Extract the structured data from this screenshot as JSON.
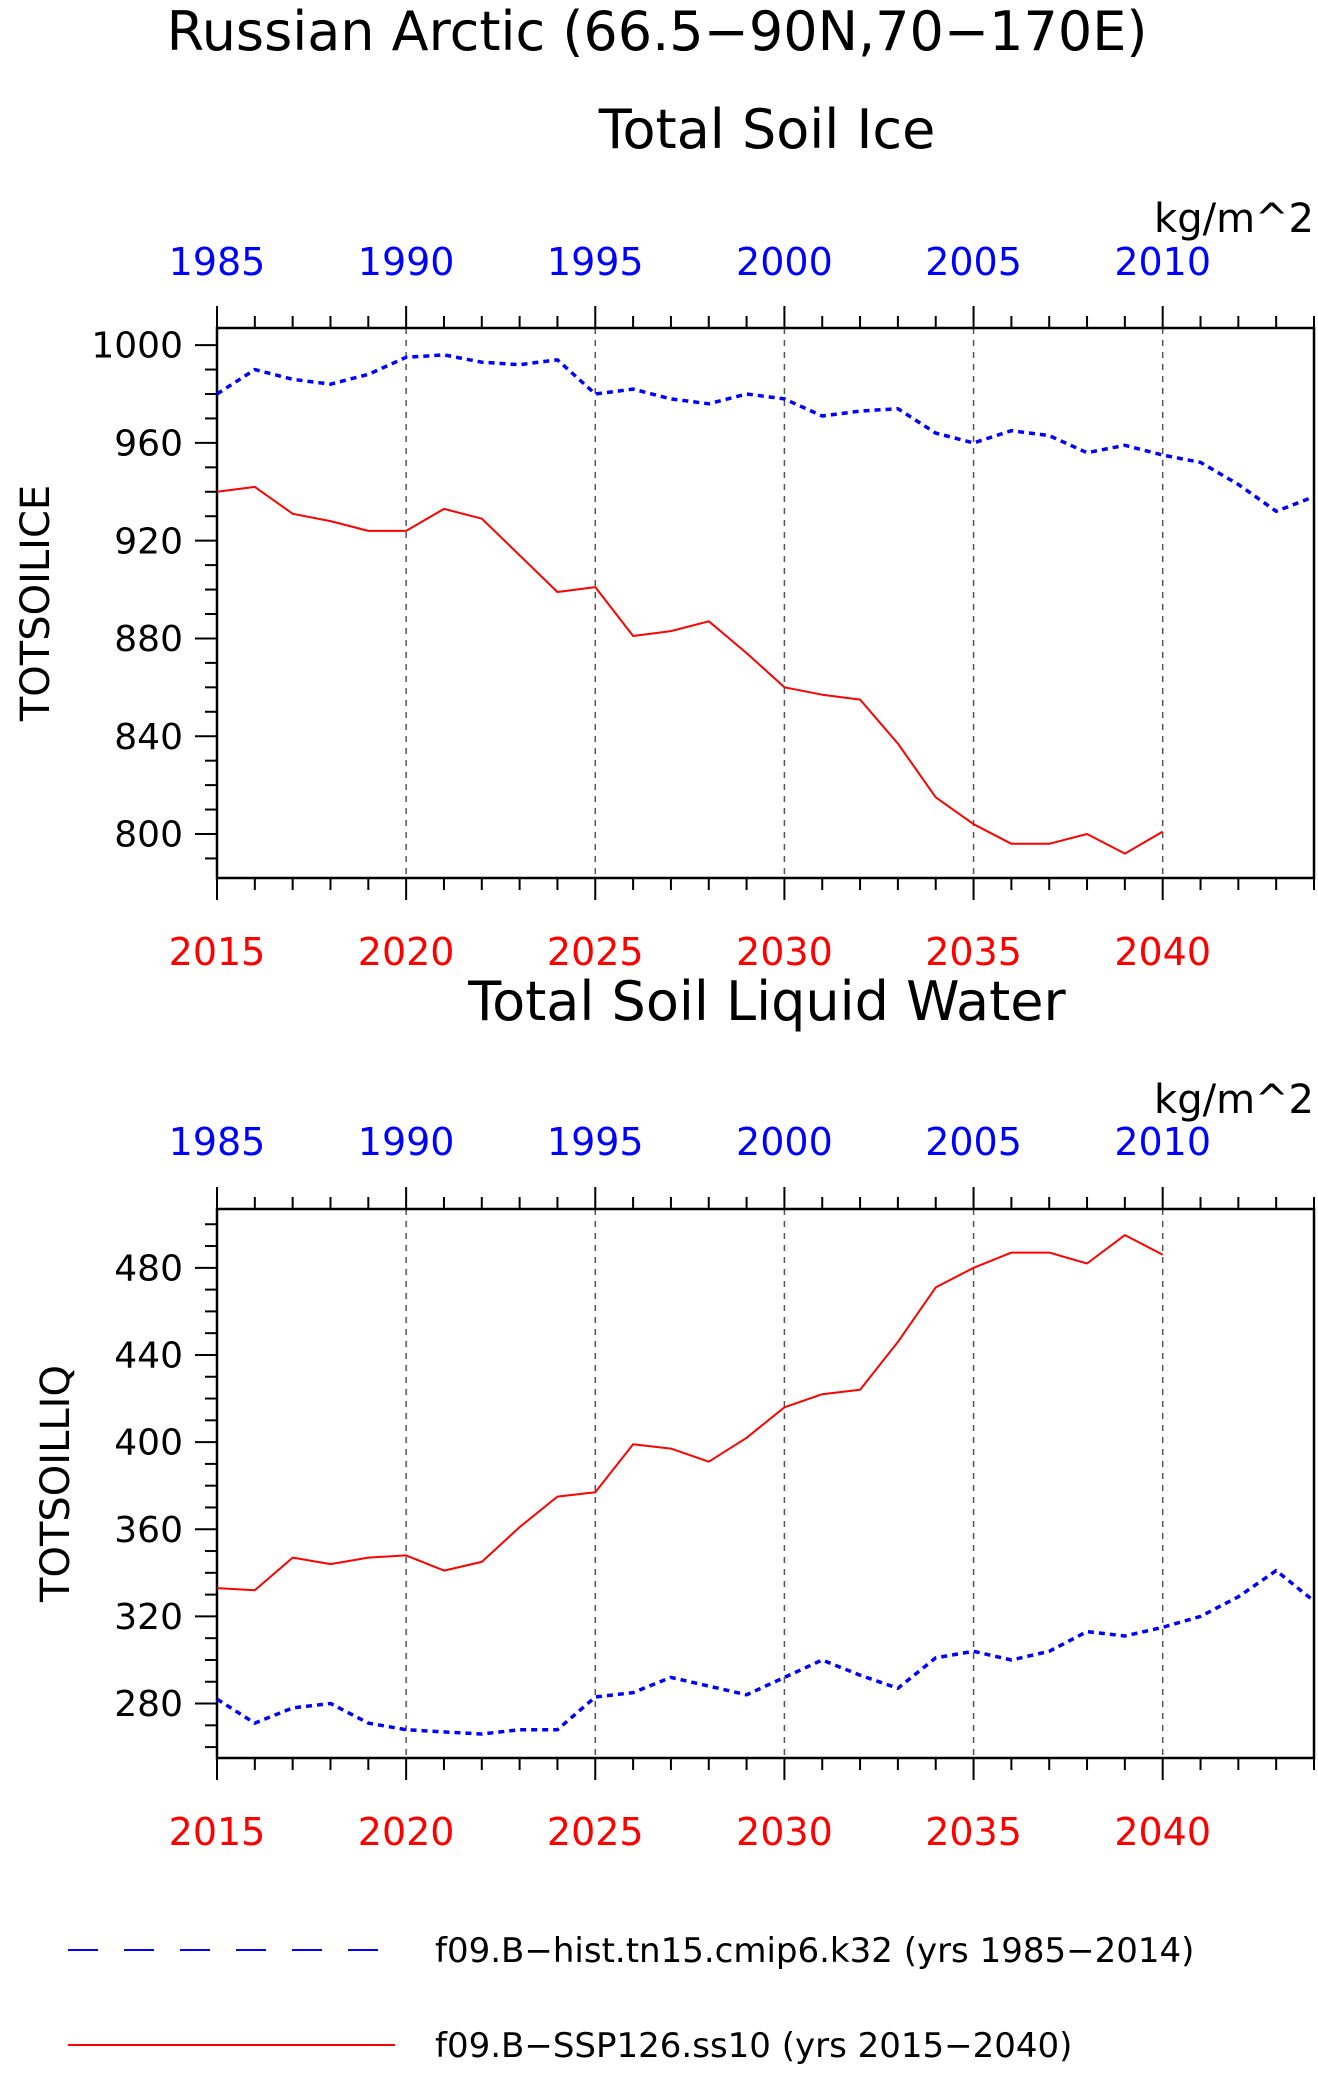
{
  "title": "Russian Arctic (66.5−90N,70−170E)",
  "colors": {
    "hist": "#0000ff",
    "ssp": "#ff0000",
    "axis": "#000000",
    "grid": "#555555"
  },
  "legend": [
    {
      "label": "f09.B−hist.tn15.cmip6.k32 (yrs 1985−2014)",
      "color": "#0000ff",
      "style": "dashed"
    },
    {
      "label": "f09.B−SSP126.ss10 (yrs 2015−2040)",
      "color": "#ff0000",
      "style": "solid"
    }
  ],
  "chart_data": [
    {
      "type": "line",
      "title": "Total Soil Ice",
      "ylabel": "TOTSOILICE",
      "units": "kg/m^2",
      "ylim": [
        782,
        1007
      ],
      "yticks": [
        800,
        840,
        880,
        920,
        960,
        1000
      ],
      "grid": "vertical dashed at labeled years",
      "x_bottom": {
        "range": [
          2015,
          2044
        ],
        "ticks": [
          2015,
          2020,
          2025,
          2030,
          2035,
          2040
        ]
      },
      "x_top": {
        "range": [
          1985,
          2014
        ],
        "ticks": [
          1985,
          1990,
          1995,
          2000,
          2005,
          2010
        ]
      },
      "series": [
        {
          "axis": "top",
          "style": "dashed",
          "color": "#0000ff",
          "x": [
            1985,
            1986,
            1987,
            1988,
            1989,
            1990,
            1991,
            1992,
            1993,
            1994,
            1995,
            1996,
            1997,
            1998,
            1999,
            2000,
            2001,
            2002,
            2003,
            2004,
            2005,
            2006,
            2007,
            2008,
            2009,
            2010,
            2011,
            2012,
            2013,
            2014
          ],
          "values": [
            980,
            990,
            986,
            984,
            988,
            995,
            996,
            993,
            992,
            994,
            980,
            982,
            978,
            976,
            980,
            978,
            971,
            973,
            974,
            964,
            960,
            965,
            963,
            956,
            959,
            955,
            952,
            943,
            932,
            938
          ]
        },
        {
          "axis": "bottom",
          "style": "solid",
          "color": "#ff0000",
          "x": [
            2015,
            2016,
            2017,
            2018,
            2019,
            2020,
            2021,
            2022,
            2023,
            2024,
            2025,
            2026,
            2027,
            2028,
            2029,
            2030,
            2031,
            2032,
            2033,
            2034,
            2035,
            2036,
            2037,
            2038,
            2039,
            2040
          ],
          "values": [
            940,
            942,
            931,
            928,
            924,
            924,
            933,
            929,
            914,
            899,
            901,
            881,
            883,
            887,
            874,
            860,
            857,
            855,
            837,
            815,
            804,
            796,
            796,
            800,
            792,
            801
          ]
        }
      ]
    },
    {
      "type": "line",
      "title": "Total Soil Liquid Water",
      "ylabel": "TOTSOILLIQ",
      "units": "kg/m^2",
      "ylim": [
        255,
        507
      ],
      "yticks": [
        280,
        320,
        360,
        400,
        440,
        480
      ],
      "grid": "vertical dashed at labeled years",
      "x_bottom": {
        "range": [
          2015,
          2044
        ],
        "ticks": [
          2015,
          2020,
          2025,
          2030,
          2035,
          2040
        ]
      },
      "x_top": {
        "range": [
          1985,
          2014
        ],
        "ticks": [
          1985,
          1990,
          1995,
          2000,
          2005,
          2010
        ]
      },
      "series": [
        {
          "axis": "top",
          "style": "dashed",
          "color": "#0000ff",
          "x": [
            1985,
            1986,
            1987,
            1988,
            1989,
            1990,
            1991,
            1992,
            1993,
            1994,
            1995,
            1996,
            1997,
            1998,
            1999,
            2000,
            2001,
            2002,
            2003,
            2004,
            2005,
            2006,
            2007,
            2008,
            2009,
            2010,
            2011,
            2012,
            2013,
            2014
          ],
          "values": [
            282,
            271,
            278,
            280,
            271,
            268,
            267,
            266,
            268,
            268,
            283,
            285,
            292,
            288,
            284,
            292,
            300,
            293,
            287,
            301,
            304,
            300,
            304,
            313,
            311,
            315,
            320,
            329,
            341,
            327
          ]
        },
        {
          "axis": "bottom",
          "style": "solid",
          "color": "#ff0000",
          "x": [
            2015,
            2016,
            2017,
            2018,
            2019,
            2020,
            2021,
            2022,
            2023,
            2024,
            2025,
            2026,
            2027,
            2028,
            2029,
            2030,
            2031,
            2032,
            2033,
            2034,
            2035,
            2036,
            2037,
            2038,
            2039,
            2040
          ],
          "values": [
            333,
            332,
            347,
            344,
            347,
            348,
            341,
            345,
            361,
            375,
            377,
            399,
            397,
            391,
            402,
            416,
            422,
            424,
            446,
            471,
            480,
            487,
            487,
            482,
            495,
            486
          ]
        }
      ]
    }
  ]
}
